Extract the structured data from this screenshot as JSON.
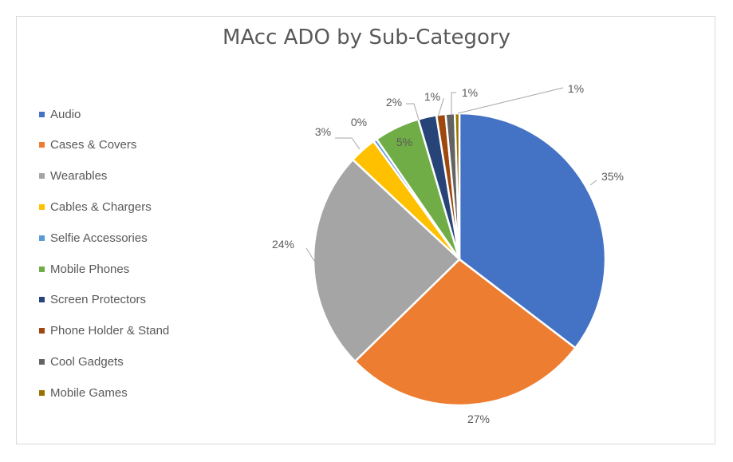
{
  "chart_data": {
    "type": "pie",
    "title": "MAcc ADO by Sub-Category",
    "categories": [
      "Audio",
      "Cases & Covers",
      "Wearables",
      "Cables & Chargers",
      "Selfie Accessories",
      "Mobile Phones",
      "Screen Protectors",
      "Phone Holder & Stand",
      "Cool Gadgets",
      "Mobile Games"
    ],
    "values": [
      35,
      27,
      24,
      3,
      0.4,
      5,
      2,
      1,
      1,
      0.5
    ],
    "data_labels": [
      "35%",
      "27%",
      "24%",
      "3%",
      "0%",
      "5%",
      "2%",
      "1%",
      "1%",
      "1%"
    ],
    "colors": [
      "#4472C4",
      "#ED7D31",
      "#A5A5A5",
      "#FFC000",
      "#5B9BD5",
      "#70AD47",
      "#264478",
      "#9E480E",
      "#636363",
      "#997300"
    ],
    "legend_position": "left"
  }
}
